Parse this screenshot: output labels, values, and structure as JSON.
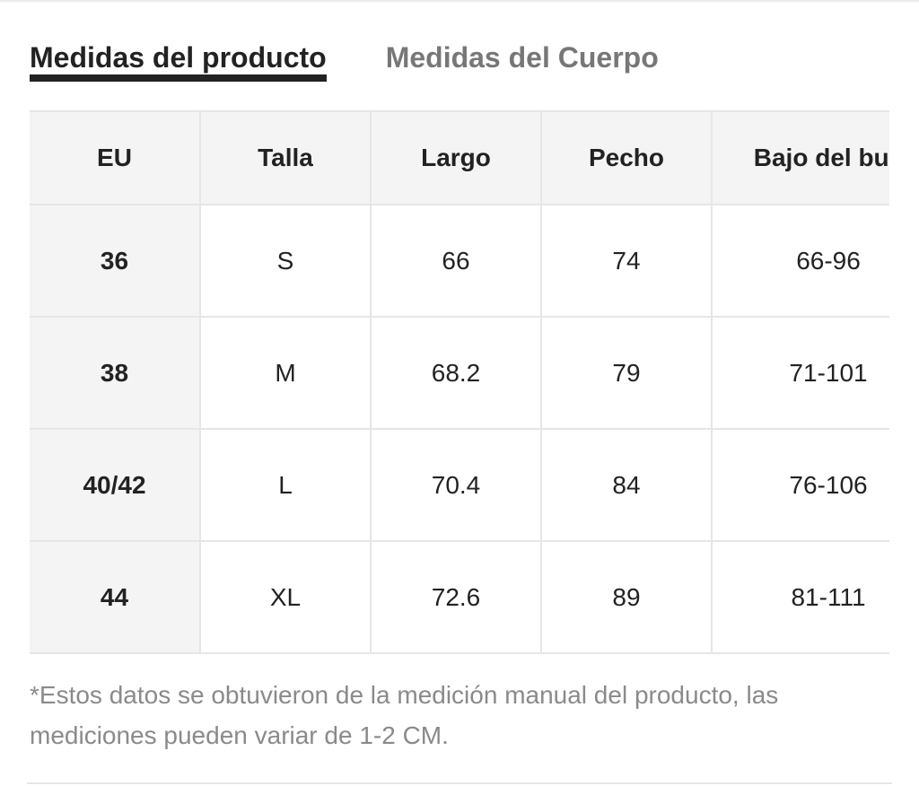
{
  "tabs": [
    {
      "label": "Medidas del producto",
      "active": true
    },
    {
      "label": "Medidas del Cuerpo",
      "active": false
    }
  ],
  "table": {
    "headers": [
      "EU",
      "Talla",
      "Largo",
      "Pecho",
      "Bajo del bus"
    ],
    "rows": [
      [
        "36",
        "S",
        "66",
        "74",
        "66-96"
      ],
      [
        "38",
        "M",
        "68.2",
        "79",
        "71-101"
      ],
      [
        "40/42",
        "L",
        "70.4",
        "84",
        "76-106"
      ],
      [
        "44",
        "XL",
        "72.6",
        "89",
        "81-111"
      ]
    ]
  },
  "note": "*Estos datos se obtuvieron de la medición manual del producto, las mediciones pueden variar de 1-2 CM.",
  "colors": {
    "active_tab": "#222222",
    "inactive_tab": "#777777",
    "header_bg": "#f4f4f4",
    "border": "#e6e6e6",
    "note_text": "#8a8a8a"
  }
}
